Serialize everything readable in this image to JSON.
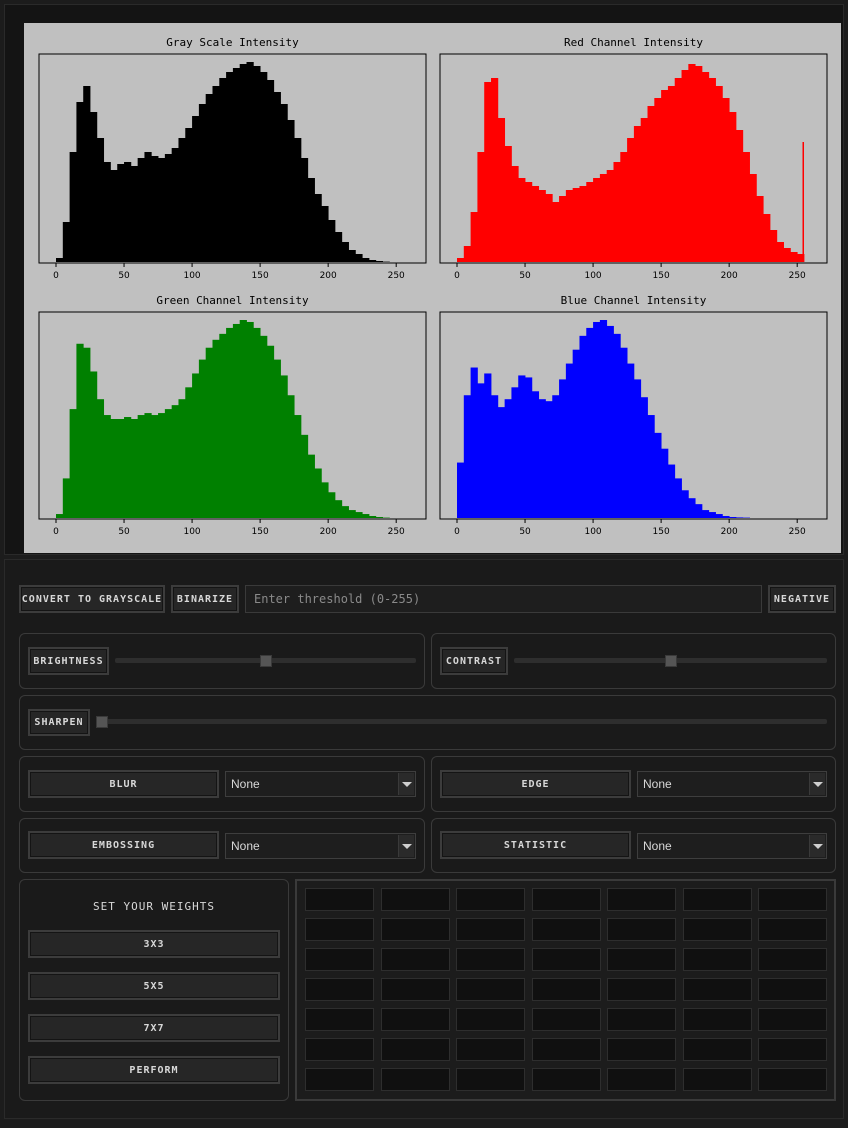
{
  "charts": {
    "titles": [
      "Gray Scale Intensity",
      "Red Channel Intensity",
      "Green Channel Intensity",
      "Blue Channel Intensity"
    ],
    "colors": [
      "#000000",
      "#ff0000",
      "#008000",
      "#0000ff"
    ],
    "xticks": [
      "0",
      "50",
      "100",
      "150",
      "200",
      "250"
    ]
  },
  "chart_data": [
    {
      "type": "bar",
      "title": "Gray Scale Intensity",
      "xlim": [
        0,
        255
      ],
      "x": [
        0,
        5,
        10,
        15,
        20,
        25,
        30,
        35,
        40,
        45,
        50,
        55,
        60,
        65,
        70,
        75,
        80,
        85,
        90,
        95,
        100,
        105,
        110,
        115,
        120,
        125,
        130,
        135,
        140,
        145,
        150,
        155,
        160,
        165,
        170,
        175,
        180,
        185,
        190,
        195,
        200,
        205,
        210,
        215,
        220,
        225,
        230,
        235,
        240,
        245,
        250,
        255
      ],
      "values": [
        0.02,
        0.2,
        0.55,
        0.8,
        0.88,
        0.75,
        0.62,
        0.5,
        0.46,
        0.49,
        0.5,
        0.48,
        0.52,
        0.55,
        0.53,
        0.52,
        0.54,
        0.57,
        0.62,
        0.67,
        0.73,
        0.79,
        0.84,
        0.88,
        0.92,
        0.95,
        0.97,
        0.99,
        1.0,
        0.98,
        0.95,
        0.91,
        0.85,
        0.79,
        0.71,
        0.62,
        0.52,
        0.42,
        0.34,
        0.28,
        0.21,
        0.15,
        0.1,
        0.06,
        0.04,
        0.02,
        0.01,
        0.005,
        0.002,
        0,
        0,
        0
      ]
    },
    {
      "type": "bar",
      "title": "Red Channel Intensity",
      "xlim": [
        0,
        255
      ],
      "x": [
        0,
        5,
        10,
        15,
        20,
        25,
        30,
        35,
        40,
        45,
        50,
        55,
        60,
        65,
        70,
        75,
        80,
        85,
        90,
        95,
        100,
        105,
        110,
        115,
        120,
        125,
        130,
        135,
        140,
        145,
        150,
        155,
        160,
        165,
        170,
        175,
        180,
        185,
        190,
        195,
        200,
        205,
        210,
        215,
        220,
        225,
        230,
        235,
        240,
        245,
        250,
        255
      ],
      "values": [
        0.02,
        0.08,
        0.25,
        0.55,
        0.9,
        0.92,
        0.72,
        0.58,
        0.48,
        0.42,
        0.4,
        0.38,
        0.36,
        0.34,
        0.3,
        0.33,
        0.36,
        0.37,
        0.38,
        0.4,
        0.42,
        0.44,
        0.46,
        0.5,
        0.55,
        0.62,
        0.68,
        0.72,
        0.78,
        0.82,
        0.86,
        0.88,
        0.92,
        0.96,
        0.99,
        0.98,
        0.95,
        0.92,
        0.88,
        0.82,
        0.75,
        0.66,
        0.55,
        0.44,
        0.33,
        0.24,
        0.16,
        0.1,
        0.07,
        0.05,
        0.04,
        0.6
      ]
    },
    {
      "type": "bar",
      "title": "Green Channel Intensity",
      "xlim": [
        0,
        255
      ],
      "x": [
        0,
        5,
        10,
        15,
        20,
        25,
        30,
        35,
        40,
        45,
        50,
        55,
        60,
        65,
        70,
        75,
        80,
        85,
        90,
        95,
        100,
        105,
        110,
        115,
        120,
        125,
        130,
        135,
        140,
        145,
        150,
        155,
        160,
        165,
        170,
        175,
        180,
        185,
        190,
        195,
        200,
        205,
        210,
        215,
        220,
        225,
        230,
        235,
        240,
        245,
        250,
        255
      ],
      "values": [
        0.02,
        0.2,
        0.55,
        0.88,
        0.86,
        0.74,
        0.6,
        0.52,
        0.5,
        0.5,
        0.51,
        0.5,
        0.52,
        0.53,
        0.52,
        0.53,
        0.55,
        0.57,
        0.6,
        0.66,
        0.73,
        0.8,
        0.86,
        0.9,
        0.93,
        0.96,
        0.98,
        1.0,
        0.99,
        0.96,
        0.92,
        0.87,
        0.8,
        0.72,
        0.62,
        0.52,
        0.42,
        0.32,
        0.25,
        0.18,
        0.13,
        0.09,
        0.06,
        0.04,
        0.03,
        0.02,
        0.01,
        0.005,
        0.002,
        0,
        0,
        0
      ]
    },
    {
      "type": "bar",
      "title": "Blue Channel Intensity",
      "xlim": [
        0,
        255
      ],
      "x": [
        0,
        5,
        10,
        15,
        20,
        25,
        30,
        35,
        40,
        45,
        50,
        55,
        60,
        65,
        70,
        75,
        80,
        85,
        90,
        95,
        100,
        105,
        110,
        115,
        120,
        125,
        130,
        135,
        140,
        145,
        150,
        155,
        160,
        165,
        170,
        175,
        180,
        185,
        190,
        195,
        200,
        205,
        210,
        215,
        220,
        225,
        230,
        235,
        240,
        245,
        250,
        255
      ],
      "values": [
        0.28,
        0.62,
        0.76,
        0.68,
        0.73,
        0.62,
        0.56,
        0.6,
        0.66,
        0.72,
        0.71,
        0.64,
        0.6,
        0.59,
        0.62,
        0.7,
        0.78,
        0.85,
        0.92,
        0.96,
        0.99,
        1.0,
        0.97,
        0.93,
        0.86,
        0.78,
        0.7,
        0.61,
        0.52,
        0.43,
        0.35,
        0.27,
        0.2,
        0.14,
        0.1,
        0.07,
        0.04,
        0.03,
        0.02,
        0.01,
        0.005,
        0.003,
        0.002,
        0,
        0,
        0,
        0,
        0,
        0,
        0,
        0,
        0
      ]
    }
  ],
  "toolbar": {
    "grayscale_label": "CONVERT TO GRAYSCALE",
    "binarize_label": "BINARIZE",
    "threshold_placeholder": "Enter threshold (0-255)",
    "negative_label": "NEGATIVE"
  },
  "adjust": {
    "brightness_label": "BRIGHTNESS",
    "brightness_value": 0.5,
    "contrast_label": "CONTRAST",
    "contrast_value": 0.5,
    "sharpen_label": "SHARPEN",
    "sharpen_value": 0
  },
  "filters": {
    "blur_label": "BLUR",
    "blur_value": "None",
    "edge_label": "EDGE",
    "edge_value": "None",
    "embossing_label": "EMBOSSING",
    "embossing_value": "None",
    "statistic_label": "STATISTIC",
    "statistic_value": "None"
  },
  "weights": {
    "title": "SET YOUR WEIGHTS",
    "btn_3x3": "3X3",
    "btn_5x5": "5X5",
    "btn_7x7": "7X7",
    "perform": "PERFORM"
  }
}
